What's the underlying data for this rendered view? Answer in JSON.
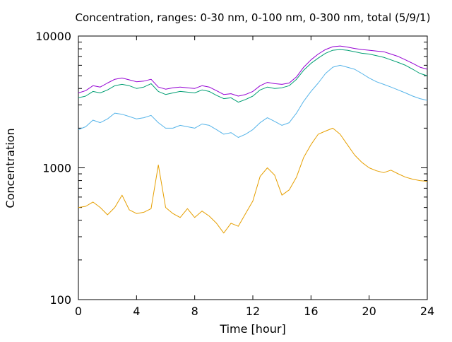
{
  "chart_data": {
    "type": "line",
    "title": "Concentration, ranges: 0-30 nm, 0-100 nm, 0-300 nm, total (5/9/1)",
    "xlabel": "Time [hour]",
    "ylabel": "Concentration",
    "xlim": [
      0,
      24
    ],
    "ylim": [
      100,
      10000
    ],
    "y_scale": "log",
    "grid": false,
    "legend": "none",
    "x_ticks": [
      0,
      4,
      8,
      12,
      16,
      20,
      24
    ],
    "y_ticks": [
      100,
      1000,
      10000
    ],
    "x_tick_labels": [
      "0",
      "4",
      "8",
      "12",
      "16",
      "20",
      "24"
    ],
    "y_tick_labels": [
      "100",
      "1000",
      "10000"
    ],
    "x": [
      0,
      0.5,
      1,
      1.5,
      2,
      2.5,
      3,
      3.5,
      4,
      4.5,
      5,
      5.5,
      6,
      6.5,
      7,
      7.5,
      8,
      8.5,
      9,
      9.5,
      10,
      10.5,
      11,
      11.5,
      12,
      12.5,
      13,
      13.5,
      14,
      14.5,
      15,
      15.5,
      16,
      16.5,
      17,
      17.5,
      18,
      18.5,
      19,
      19.5,
      20,
      20.5,
      21,
      21.5,
      22,
      22.5,
      23,
      23.5,
      24
    ],
    "series": [
      {
        "color": "#e69f00",
        "values": [
          500,
          510,
          550,
          500,
          440,
          500,
          620,
          480,
          450,
          460,
          490,
          1050,
          500,
          450,
          420,
          490,
          420,
          470,
          430,
          380,
          320,
          380,
          360,
          450,
          560,
          860,
          1000,
          880,
          620,
          680,
          850,
          1200,
          1500,
          1800,
          1900,
          2000,
          1800,
          1500,
          1250,
          1100,
          1000,
          950,
          920,
          960,
          900,
          850,
          820,
          800,
          790
        ]
      },
      {
        "color": "#56b4e9",
        "values": [
          1950,
          2050,
          2300,
          2200,
          2350,
          2600,
          2550,
          2450,
          2350,
          2400,
          2500,
          2200,
          2000,
          2000,
          2100,
          2050,
          2000,
          2150,
          2100,
          1950,
          1800,
          1850,
          1700,
          1800,
          1950,
          2200,
          2400,
          2250,
          2100,
          2200,
          2600,
          3200,
          3800,
          4400,
          5200,
          5800,
          6000,
          5800,
          5600,
          5200,
          4800,
          4500,
          4300,
          4100,
          3900,
          3700,
          3500,
          3350,
          3250
        ]
      },
      {
        "color": "#009e73",
        "values": [
          3400,
          3500,
          3800,
          3700,
          3900,
          4200,
          4300,
          4200,
          4000,
          4100,
          4350,
          3800,
          3600,
          3700,
          3800,
          3750,
          3700,
          3900,
          3800,
          3550,
          3350,
          3400,
          3150,
          3300,
          3500,
          3900,
          4100,
          4000,
          4050,
          4200,
          4700,
          5500,
          6200,
          6800,
          7400,
          7800,
          7900,
          7800,
          7600,
          7400,
          7300,
          7100,
          6900,
          6600,
          6300,
          6000,
          5600,
          5200,
          5000
        ]
      },
      {
        "color": "#9400d3",
        "values": [
          3700,
          3850,
          4200,
          4100,
          4400,
          4700,
          4800,
          4650,
          4500,
          4550,
          4700,
          4100,
          3950,
          4050,
          4100,
          4050,
          4000,
          4200,
          4100,
          3850,
          3600,
          3650,
          3500,
          3600,
          3800,
          4200,
          4450,
          4350,
          4300,
          4400,
          4900,
          5800,
          6600,
          7300,
          7900,
          8300,
          8400,
          8250,
          8050,
          7900,
          7800,
          7700,
          7600,
          7300,
          7000,
          6600,
          6200,
          5800,
          5600
        ]
      }
    ]
  }
}
